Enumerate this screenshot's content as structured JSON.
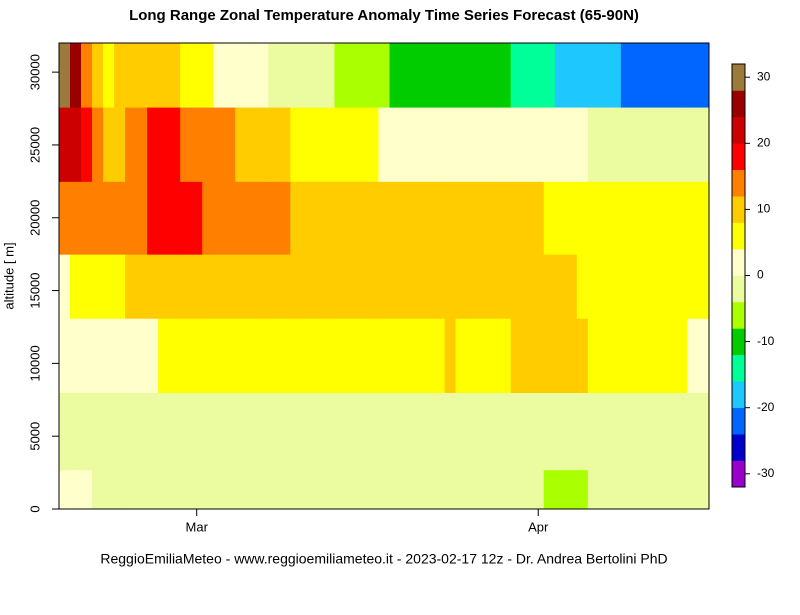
{
  "chart_data": {
    "type": "heatmap",
    "title": "Long Range Zonal Temperature Anomaly Time Series Forecast (65-90N)",
    "ylabel": "altitude [ m]",
    "caption": "ReggioEmiliaMeteo - www.reggioemiliameteo.it -  2023-02-17 12z - Dr. Andrea Bertolini PhD",
    "x": [
      -12.5,
      -11.5,
      -10.5,
      -9.5,
      -8.5,
      -7.5,
      -6.5,
      -4.5,
      -3.5,
      -1.5,
      0.5,
      1.5,
      3.5,
      6.5,
      8.5,
      12.5,
      16.5,
      17.5,
      22.5,
      23.5,
      28.5,
      31.5,
      32.5,
      34.5,
      35.5,
      38.5,
      44.5,
      46.5
    ],
    "xlim": [
      -12.5,
      46.5
    ],
    "xticks": [
      {
        "value": 0,
        "label": "Mar"
      },
      {
        "value": 31,
        "label": "Apr"
      }
    ],
    "y": [
      0,
      2700,
      8000,
      13100,
      17500,
      22500,
      27600,
      32000
    ],
    "ylim": [
      0,
      32000
    ],
    "yticks": [
      0,
      5000,
      10000,
      15000,
      20000,
      25000,
      30000
    ],
    "z": [
      [
        2,
        2,
        2,
        -2,
        -2,
        -2,
        -2,
        -2,
        -2,
        -2,
        -2,
        -2,
        -2,
        -2,
        -2,
        -2,
        -2,
        -2,
        -2,
        -2,
        -2,
        -6,
        -6,
        -6,
        -2,
        -2,
        -2
      ],
      [
        -2,
        -2,
        -2,
        -2,
        -2,
        -2,
        -2,
        -2,
        -2,
        -2,
        -2,
        -2,
        -2,
        -2,
        -2,
        -2,
        -2,
        -2,
        -2,
        -2,
        -2,
        -2,
        -2,
        -2,
        -2,
        -2,
        -2
      ],
      [
        2,
        2,
        2,
        2,
        2,
        2,
        2,
        2,
        6,
        6,
        6,
        6,
        6,
        6,
        6,
        6,
        6,
        6,
        10,
        6,
        10,
        10,
        10,
        10,
        6,
        6,
        2
      ],
      [
        2,
        6,
        6,
        6,
        6,
        6,
        10,
        10,
        10,
        10,
        10,
        10,
        10,
        10,
        10,
        10,
        10,
        10,
        10,
        10,
        10,
        10,
        10,
        6,
        6,
        6,
        6
      ],
      [
        14,
        14,
        14,
        14,
        14,
        14,
        14,
        18,
        18,
        18,
        14,
        14,
        14,
        14,
        10,
        10,
        10,
        10,
        10,
        10,
        10,
        6,
        6,
        6,
        6,
        6,
        6
      ],
      [
        22,
        22,
        18,
        14,
        10,
        10,
        14,
        18,
        18,
        14,
        14,
        14,
        10,
        10,
        6,
        6,
        2,
        2,
        2,
        2,
        2,
        2,
        2,
        2,
        -2,
        -2,
        -2
      ],
      [
        30,
        26,
        14,
        10,
        6,
        10,
        10,
        10,
        10,
        6,
        6,
        2,
        2,
        -2,
        -2,
        -6,
        -6,
        -10,
        -10,
        -10,
        -14,
        -14,
        -18,
        -18,
        -18,
        -22,
        -22
      ]
    ],
    "levels": [
      -32,
      -28,
      -24,
      -20,
      -16,
      -12,
      -8,
      -4,
      0,
      4,
      8,
      12,
      16,
      20,
      24,
      28,
      32
    ],
    "colors": [
      "#9900cc",
      "#0000cc",
      "#0066ff",
      "#1ec8ff",
      "#00ff99",
      "#00cc00",
      "#aaff00",
      "#ebfba0",
      "#ffffcc",
      "#ffff00",
      "#ffcc00",
      "#ff8000",
      "#ff0000",
      "#cc0000",
      "#990000",
      "#9b7b3c"
    ],
    "zlim": [
      -32,
      32
    ],
    "zticks": [
      -30,
      -20,
      -10,
      0,
      10,
      20,
      30
    ]
  }
}
